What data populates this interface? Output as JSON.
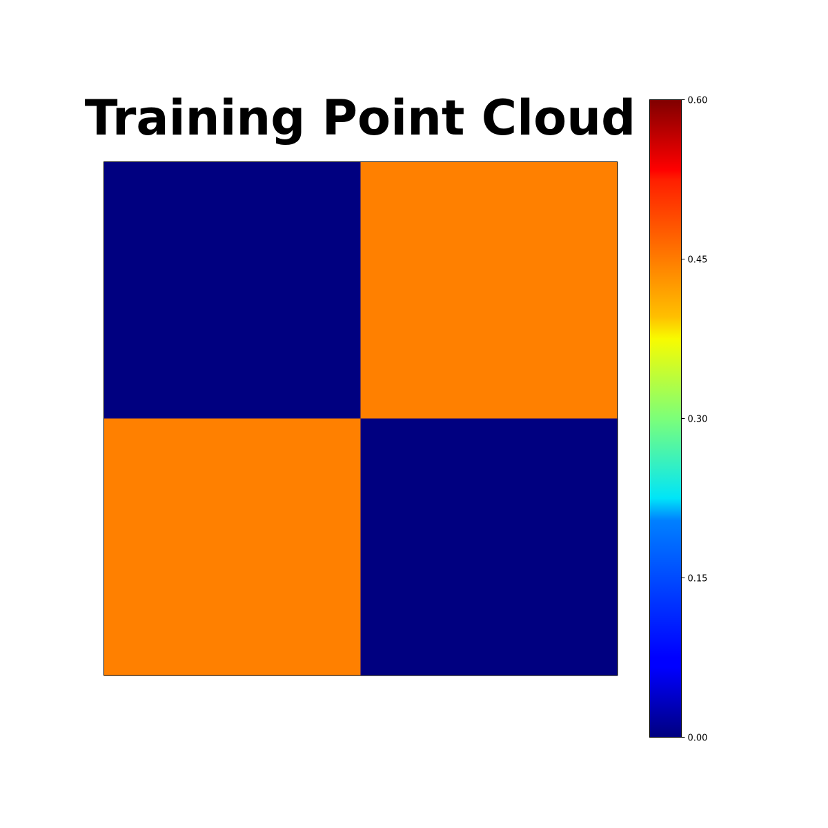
{
  "chart_data": {
    "type": "heatmap",
    "title": "Training Point Cloud",
    "matrix": [
      [
        0.0,
        0.45
      ],
      [
        0.45,
        0.0
      ]
    ],
    "colormap": "jet",
    "colorbar": {
      "range": [
        0.0,
        0.6
      ],
      "ticks": [
        0.0,
        0.15,
        0.3,
        0.45,
        0.6
      ],
      "tick_labels": [
        "0.00",
        "0.15",
        "0.30",
        "0.45",
        "0.60"
      ],
      "placement": "right"
    },
    "axes_visible": false,
    "grid": false
  }
}
